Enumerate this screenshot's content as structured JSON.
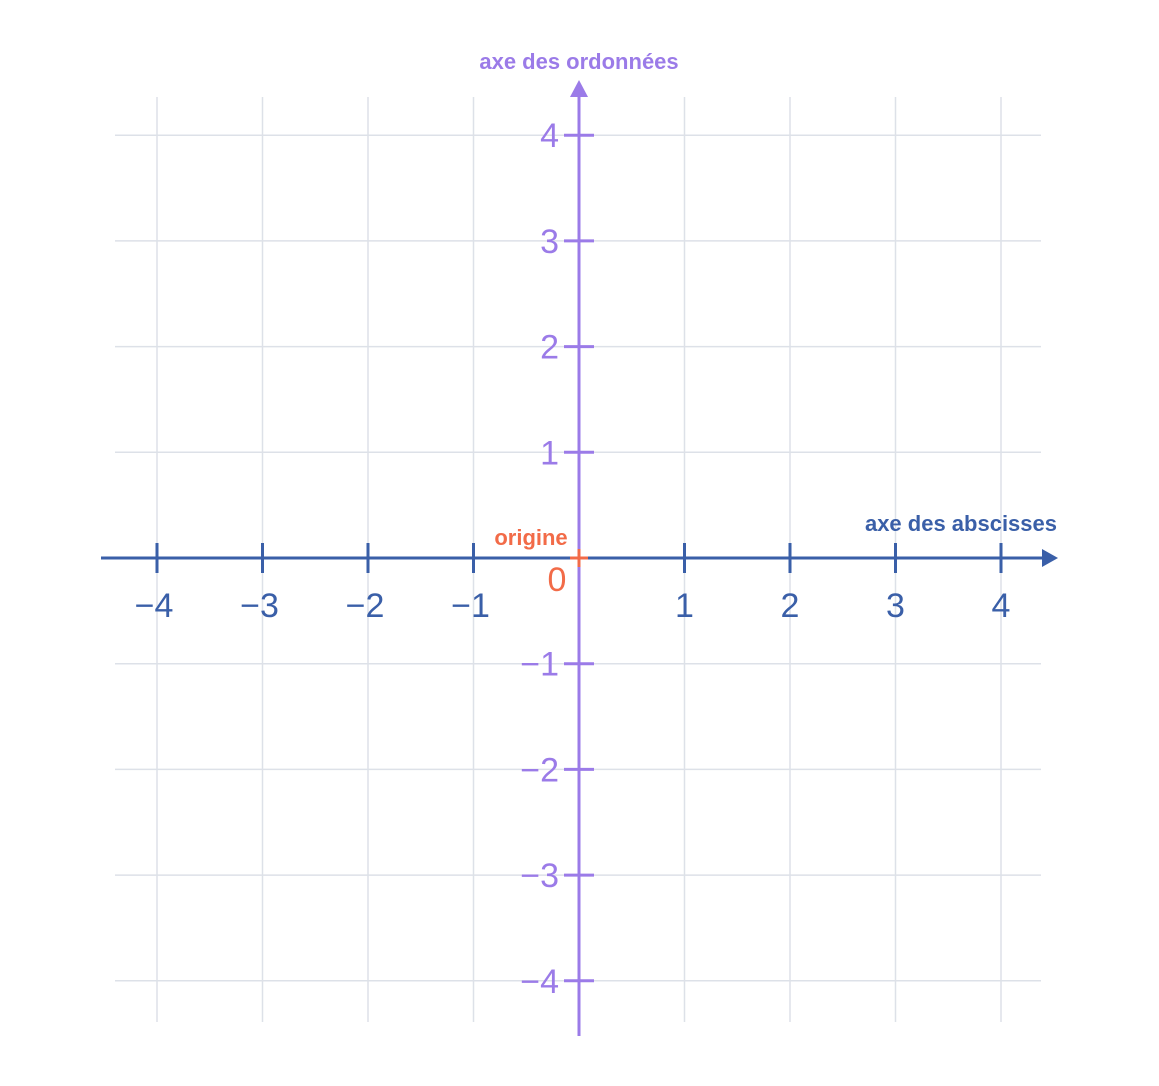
{
  "diagram": {
    "x_axis": {
      "title": "axe des abscisses",
      "color": "#3a5fa8",
      "min": -4,
      "max": 4,
      "ticks": [
        -4,
        -3,
        -2,
        -1,
        1,
        2,
        3,
        4
      ],
      "tick_labels": [
        "−4",
        "−3",
        "−2",
        "−1",
        "1",
        "2",
        "3",
        "4"
      ]
    },
    "y_axis": {
      "title": "axe des ordonnées",
      "color": "#9b7be8",
      "min": -4,
      "max": 4,
      "ticks": [
        -4,
        -3,
        -2,
        -1,
        1,
        2,
        3,
        4
      ],
      "tick_labels": [
        "−4",
        "−3",
        "−2",
        "−1",
        "1",
        "2",
        "3",
        "4"
      ]
    },
    "origin": {
      "label": "origine",
      "value_label": "0",
      "color": "#f26b48"
    },
    "grid": true,
    "grid_color": "#dde1e8"
  }
}
